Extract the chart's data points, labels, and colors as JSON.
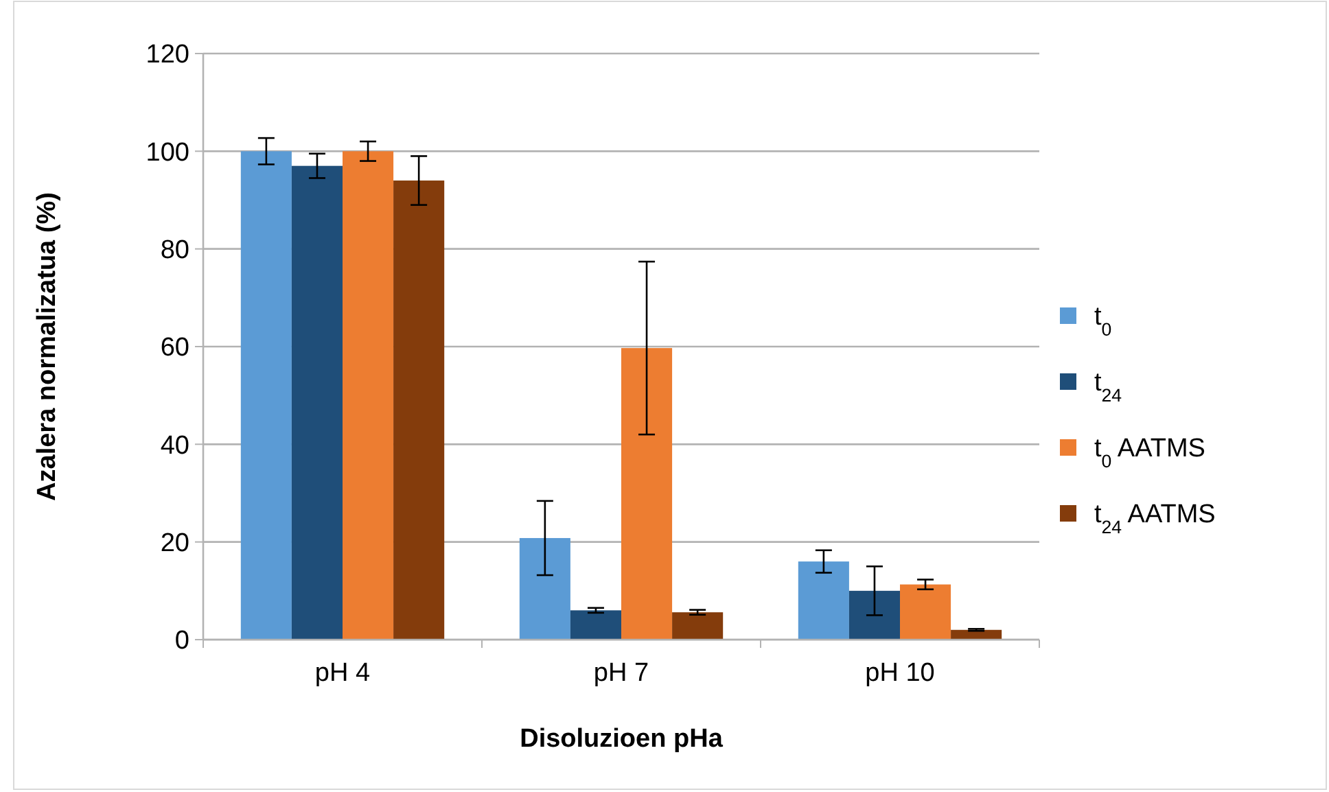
{
  "chart_data": {
    "type": "bar",
    "xlabel": "Disoluzioen pHa",
    "ylabel": "Azalera normalizatua (%)",
    "categories": [
      "pH 4",
      "pH 7",
      "pH 10"
    ],
    "series": [
      {
        "name": "t$_{0}$",
        "color": "#5b9bd5",
        "values": [
          100,
          20.8,
          16
        ],
        "errors": [
          2.7,
          7.6,
          2.3
        ]
      },
      {
        "name": "t$_{24}$",
        "color": "#1f4e79",
        "values": [
          97,
          6,
          10
        ],
        "errors": [
          2.5,
          0.5,
          5
        ]
      },
      {
        "name": "t$_{0}$ AATMS",
        "color": "#ed7d31",
        "values": [
          100,
          59.7,
          11.3
        ],
        "errors": [
          2,
          17.7,
          1
        ]
      },
      {
        "name": "t$_{24}$ AATMS",
        "color": "#843c0c",
        "values": [
          94,
          5.6,
          2
        ],
        "errors": [
          5,
          0.5,
          0.2
        ]
      }
    ],
    "ylim": [
      0,
      120
    ],
    "yticks": [
      0,
      20,
      40,
      60,
      80,
      100,
      120
    ],
    "grid": "y",
    "legend": "right"
  }
}
